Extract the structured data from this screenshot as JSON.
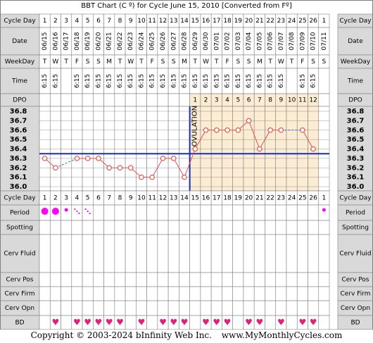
{
  "title": "BBT Chart (C º) for Cycle June 15, 2010  [Converted from Fº]",
  "labels": {
    "cycle_day": "Cycle Day",
    "date": "Date",
    "weekday": "WeekDay",
    "time": "Time",
    "dpo": "DPO",
    "period": "Period",
    "spotting": "Spotting",
    "cerv_fluid": "Cerv Fluid",
    "cerv_pos": "Cerv Pos",
    "cerv_firm": "Cerv Firm",
    "cerv_opn": "Cerv Opn",
    "bd": "BD",
    "ovulation": "OVULATION"
  },
  "footer": {
    "copyright": "Copyright © 2003-2024 bInfinity Web Inc.",
    "site": "www.MyMonthlyCycles.com"
  },
  "colors": {
    "grid": "#808080",
    "header_bg": "#d9d9d9",
    "post_ov_bg": "#fbecd3",
    "plot_bg": "#ffffff",
    "temp_line": "#e0524a",
    "coverline": "#1a2fb0",
    "ovulation_line": "#1a2fb0",
    "period_dot": "#ff00ff",
    "heart": "#e0207a"
  },
  "chart_data": {
    "type": "line",
    "cycle_days": [
      "1",
      "2",
      "3",
      "4",
      "5",
      "6",
      "7",
      "8",
      "9",
      "10",
      "11",
      "12",
      "13",
      "14",
      "15",
      "16",
      "17",
      "18",
      "19",
      "20",
      "21",
      "22",
      "23",
      "24",
      "25",
      "26",
      "1"
    ],
    "dates": [
      "06/15",
      "06/16",
      "06/17",
      "06/18",
      "06/19",
      "06/20",
      "06/21",
      "06/22",
      "06/23",
      "06/24",
      "06/25",
      "06/26",
      "06/27",
      "06/28",
      "06/29",
      "06/30",
      "07/01",
      "07/02",
      "07/03",
      "07/04",
      "07/05",
      "07/06",
      "07/07",
      "07/08",
      "07/09",
      "07/10",
      "07/11"
    ],
    "weekdays": [
      "T",
      "W",
      "T",
      "F",
      "S",
      "S",
      "M",
      "T",
      "W",
      "T",
      "F",
      "S",
      "S",
      "M",
      "T",
      "W",
      "T",
      "F",
      "S",
      "S",
      "M",
      "T",
      "W",
      "T",
      "F",
      "S",
      "S"
    ],
    "times": [
      "6:15",
      "6:15",
      "",
      "6:15",
      "6:15",
      "6:15",
      "6:15",
      "6:15",
      "6:15",
      "6:15",
      "6:15",
      "6:15",
      "6:15",
      "6:15",
      "6:15",
      "6:15",
      "6:15",
      "6:15",
      "6:15",
      "6:15",
      "6:15",
      "6:15",
      "6:15",
      "",
      "6:15",
      "6:15",
      ""
    ],
    "dpo": [
      "",
      "",
      "",
      "",
      "",
      "",
      "",
      "",
      "",
      "",
      "",
      "",
      "",
      "",
      "1",
      "2",
      "3",
      "4",
      "5",
      "6",
      "7",
      "8",
      "9",
      "10",
      "11",
      "12",
      ""
    ],
    "temps": [
      36.3,
      36.2,
      null,
      36.3,
      36.3,
      36.3,
      36.2,
      36.2,
      36.2,
      36.1,
      36.1,
      36.3,
      36.3,
      36.1,
      36.4,
      36.6,
      36.6,
      36.6,
      36.6,
      36.7,
      36.4,
      36.6,
      36.6,
      null,
      36.6,
      36.4,
      null
    ],
    "y_ticks": [
      "36.8",
      "36.7",
      "36.6",
      "36.5",
      "36.4",
      "36.3",
      "36.2",
      "36.1",
      "36.0"
    ],
    "ylim": [
      36.0,
      36.8
    ],
    "coverline": 36.35,
    "ovulation_after_day_index": 13,
    "period": [
      "heavy",
      "heavy",
      "light",
      "spot",
      "spot",
      "",
      "",
      "",
      "",
      "",
      "",
      "",
      "",
      "",
      "",
      "",
      "",
      "",
      "",
      "",
      "",
      "",
      "",
      "",
      "",
      "",
      "light"
    ],
    "bd": [
      "",
      "heart",
      "",
      "heart",
      "heart",
      "heart",
      "heart",
      "heart",
      "",
      "heart",
      "",
      "heart",
      "heart",
      "heart",
      "",
      "heart",
      "heart",
      "heart",
      "",
      "heart",
      "heart",
      "",
      "heart",
      "",
      "heart",
      "heart",
      ""
    ]
  }
}
